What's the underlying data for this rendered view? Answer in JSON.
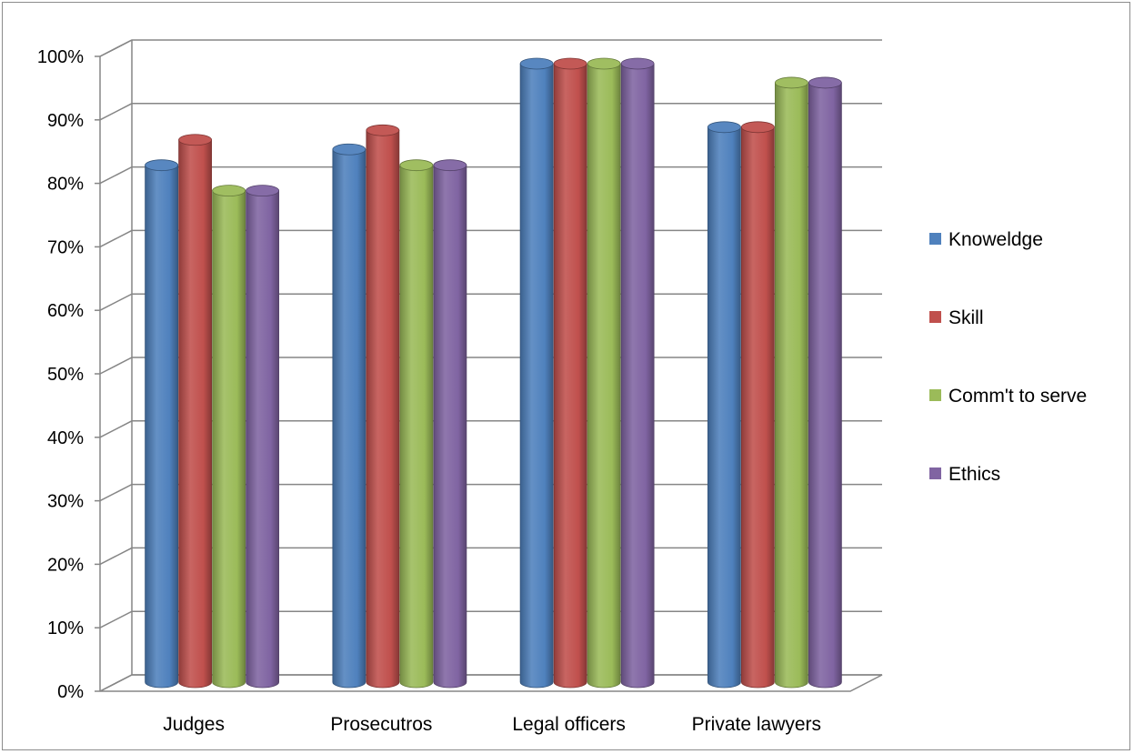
{
  "chart_data": {
    "type": "bar",
    "style": "3d-cylinder",
    "categories": [
      "Judges",
      "Prosecutros",
      "Legal officers",
      "Private lawyers"
    ],
    "series": [
      {
        "name": "Knoweldge",
        "color": "#4f81bd",
        "values": [
          84,
          86.5,
          100,
          90
        ]
      },
      {
        "name": "Skill",
        "color": "#c0504d",
        "values": [
          88,
          89.5,
          100,
          90
        ]
      },
      {
        "name": "Comm't to serve",
        "color": "#9bbb59",
        "values": [
          80,
          84,
          100,
          97
        ]
      },
      {
        "name": "Ethics",
        "color": "#8064a2",
        "values": [
          80,
          84,
          100,
          97
        ]
      }
    ],
    "y_ticks": [
      "0%",
      "10%",
      "20%",
      "30%",
      "40%",
      "50%",
      "60%",
      "70%",
      "80%",
      "90%",
      "100%"
    ],
    "ylim": [
      0,
      100
    ],
    "grid": true,
    "legend": "right"
  }
}
